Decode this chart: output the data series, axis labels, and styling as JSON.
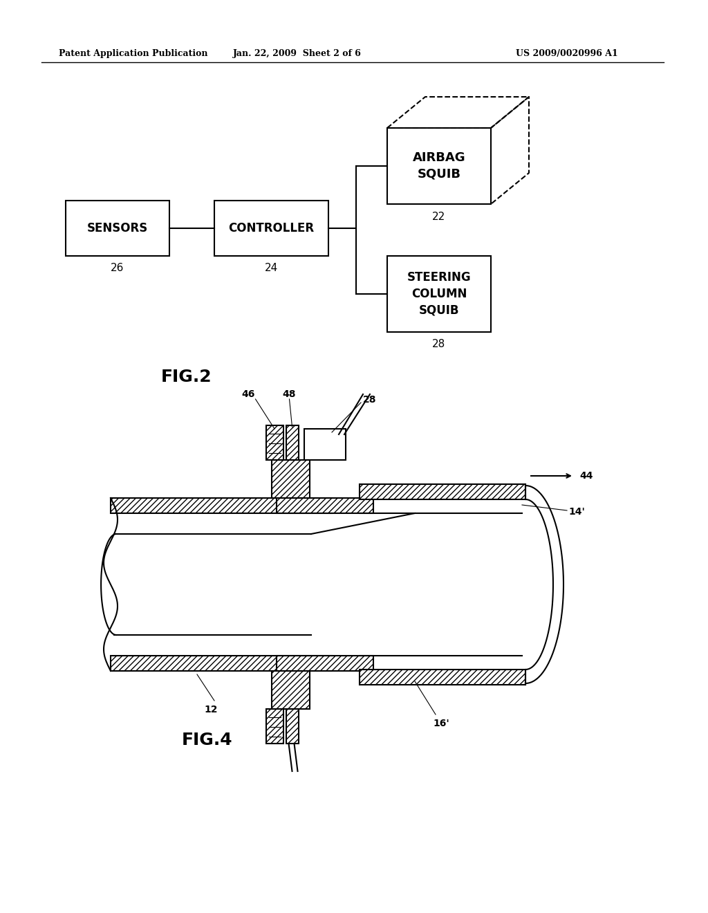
{
  "bg_color": "#ffffff",
  "header_left": "Patent Application Publication",
  "header_mid": "Jan. 22, 2009  Sheet 2 of 6",
  "header_right": "US 2009/0020996 A1",
  "fig2_label": "FIG.2",
  "fig4_label": "FIG.4",
  "sensors_label": "SENSORS",
  "sensors_num": "26",
  "controller_label": "CONTROLLER",
  "controller_num": "24",
  "airbag_label": "AIRBAG\nSQUIB",
  "airbag_num": "22",
  "steering_label": "STEERING\nCOLUMN\nSQUIB",
  "steering_num": "28",
  "fig4_labels": [
    "46",
    "48",
    "28",
    "14'",
    "44",
    "12",
    "16'"
  ]
}
